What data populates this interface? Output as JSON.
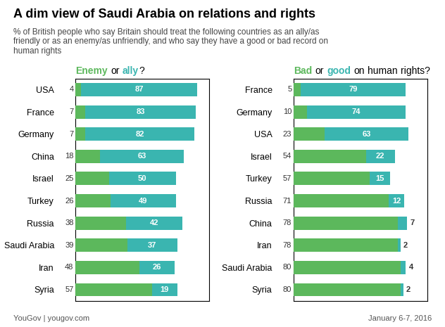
{
  "title": "A dim view of Saudi Arabia on relations and rights",
  "subtitle": "% of British people who say Britain should treat the following countries as an ally/as\nfriendly or as an enemy/as unfriendly, and who say they have a good or bad record on\nhuman rights",
  "annotations": [
    "YouGov | yougov.com",
    "January 6-7, 2016"
  ],
  "chart_data": [
    {
      "type": "bar",
      "orientation": "horizontal",
      "stacked": true,
      "data_labels": true,
      "tick_labels": "y",
      "title": "Enemy or ally?",
      "categories": [
        "USA",
        "France",
        "Germany",
        "China",
        "Israel",
        "Turkey",
        "Russia",
        "Saudi Arabia",
        "Iran",
        "Syria"
      ],
      "series": [
        {
          "name": "Enemy",
          "color": "#5cb85c",
          "values": [
            4,
            7,
            7,
            18,
            25,
            26,
            38,
            39,
            48,
            57
          ]
        },
        {
          "name": "ally",
          "color": "#3ab5b0",
          "values": [
            87,
            83,
            82,
            63,
            50,
            49,
            42,
            37,
            26,
            19
          ]
        }
      ],
      "xlim": [
        0,
        100
      ],
      "xticks": []
    },
    {
      "type": "bar",
      "orientation": "horizontal",
      "stacked": true,
      "data_labels": true,
      "tick_labels": "y",
      "title": "Bad or good on human rights?",
      "categories": [
        "France",
        "Germany",
        "USA",
        "Israel",
        "Turkey",
        "Russia",
        "China",
        "Iran",
        "Saudi Arabia",
        "Syria"
      ],
      "series": [
        {
          "name": "Bad",
          "color": "#5cb85c",
          "values": [
            5,
            10,
            23,
            54,
            57,
            71,
            78,
            78,
            80,
            80
          ]
        },
        {
          "name": "good",
          "color": "#3ab5b0",
          "values": [
            79,
            74,
            63,
            22,
            15,
            12,
            7,
            2,
            4,
            2
          ]
        }
      ],
      "xlim": [
        0,
        100
      ],
      "xticks": []
    }
  ]
}
